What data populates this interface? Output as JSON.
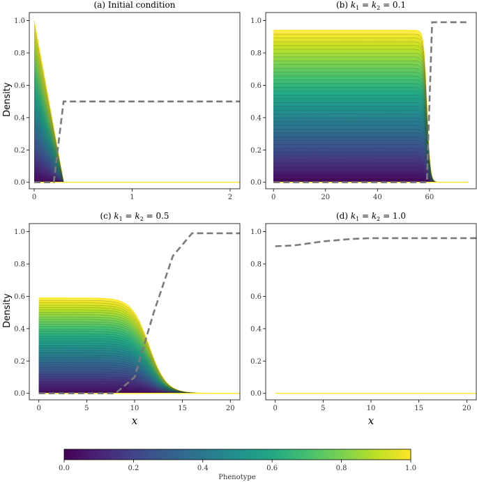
{
  "figure": {
    "colorbar": {
      "label": "Phenotype",
      "ticks": [
        "0.0",
        "0.2",
        "0.4",
        "0.6",
        "0.8",
        "1.0"
      ],
      "colormap": "viridis"
    }
  },
  "chart_data": [
    {
      "type": "line",
      "panel": "a",
      "title": "(a) Initial condition",
      "ylabel": "Density",
      "xlabel": "",
      "xlim": [
        -0.05,
        2.1
      ],
      "ylim": [
        -0.04,
        1.05
      ],
      "xticks": [
        0,
        1,
        2
      ],
      "yticks": [
        0.0,
        0.2,
        0.4,
        0.6,
        0.8,
        1.0
      ],
      "density_profiles": {
        "description": "triangular profiles, density = phenotype * (1 - x/0.3)",
        "phenotype_range": [
          0.0,
          1.0
        ],
        "peak_at_x0": 1.0,
        "support_end_x": 0.3
      },
      "dashed_line": {
        "x": [
          0.0,
          0.2,
          0.3,
          2.1
        ],
        "y": [
          0.0,
          0.0,
          0.5,
          0.5
        ],
        "color": "#7a7a7a"
      }
    },
    {
      "type": "line",
      "panel": "b",
      "title": "(b) k1 = k2 = 0.1",
      "ylabel": "",
      "xlabel": "",
      "xlim": [
        -3,
        78
      ],
      "ylim": [
        -0.04,
        1.05
      ],
      "xticks": [
        0,
        20,
        40,
        60
      ],
      "yticks": [
        0.0,
        0.2,
        0.4,
        0.6,
        0.8,
        1.0
      ],
      "density_profiles": {
        "description": "plateau profiles scaled by phenotype, sharp front near x=59",
        "plateau_max": 0.94,
        "front_x": 59,
        "front_width": 0.6,
        "x_end": 75
      },
      "dashed_line": {
        "x": [
          0,
          59,
          61,
          75
        ],
        "y": [
          0.0,
          0.0,
          0.99,
          0.99
        ],
        "color": "#7a7a7a"
      }
    },
    {
      "type": "line",
      "panel": "c",
      "title": "(c) k1 = k2 = 0.5",
      "ylabel": "Density",
      "xlabel": "x",
      "xlim": [
        -1,
        21
      ],
      "ylim": [
        -0.04,
        1.05
      ],
      "xticks": [
        0,
        5,
        10,
        15,
        20
      ],
      "yticks": [
        0.0,
        0.2,
        0.4,
        0.6,
        0.8,
        1.0
      ],
      "density_profiles": {
        "description": "plateau profiles scaled by phenotype, smooth front near x=11.5",
        "plateau_max": 0.59,
        "front_x": 11.5,
        "front_width": 0.9,
        "x_end": 21
      },
      "dashed_line": {
        "x": [
          0,
          8,
          10,
          12,
          14,
          16,
          21
        ],
        "y": [
          0.0,
          0.0,
          0.1,
          0.5,
          0.85,
          0.99,
          0.99
        ],
        "color": "#7a7a7a"
      }
    },
    {
      "type": "line",
      "panel": "d",
      "title": "(d) k1 = k2 = 1.0",
      "ylabel": "",
      "xlabel": "x",
      "xlim": [
        -1,
        21
      ],
      "ylim": [
        -0.04,
        1.05
      ],
      "xticks": [
        0,
        5,
        10,
        15,
        20
      ],
      "yticks": [
        0.0,
        0.2,
        0.4,
        0.6,
        0.8,
        1.0
      ],
      "density_profiles": {
        "description": "density is zero everywhere",
        "plateau_max": 0.0
      },
      "dashed_line": {
        "x": [
          0,
          2,
          5,
          8,
          10,
          21
        ],
        "y": [
          0.91,
          0.915,
          0.94,
          0.955,
          0.96,
          0.96
        ],
        "color": "#7a7a7a"
      }
    }
  ]
}
